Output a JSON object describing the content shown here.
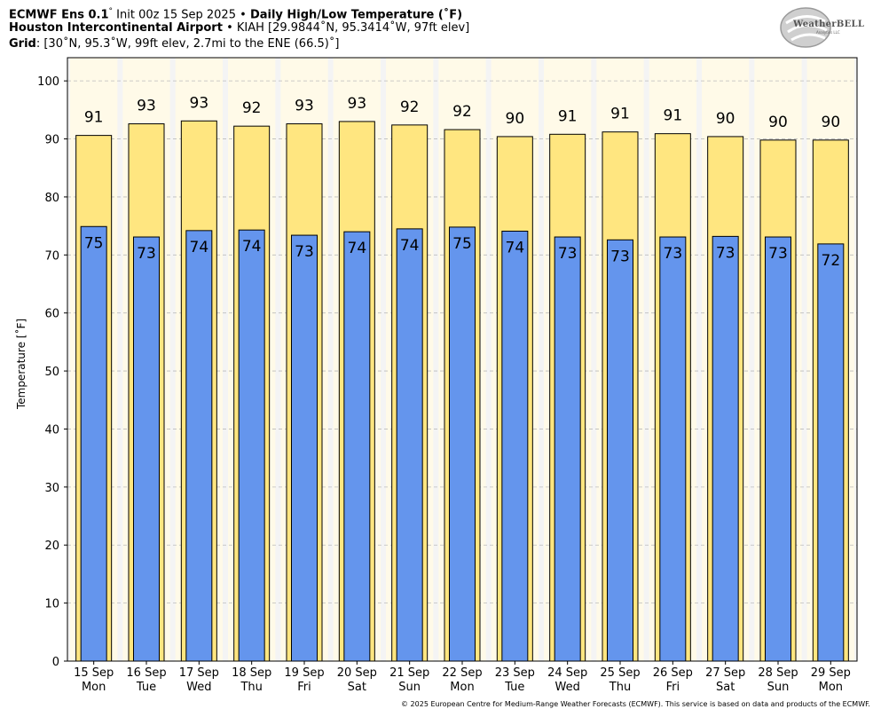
{
  "header": {
    "model": "ECMWF Ens 0.1",
    "model_sup": "°",
    "init": "Init 00z 15 Sep 2025",
    "sep": "•",
    "product": "Daily High/Low Temperature (˚F)",
    "station_name": "Houston Intercontinental Airport",
    "station_info": "KIAH [29.9844˚N, 95.3414˚W, 97ft elev]",
    "grid_label": "Grid",
    "grid_info": ": [30˚N, 95.3˚W, 99ft elev, 2.7mi to the ENE (66.5)˚]"
  },
  "logo": {
    "text": "WeatherBELL",
    "sub": "Analytics LLC"
  },
  "footer": "© 2025 European Centre for Medium-Range Weather Forecasts (ECMWF). This service is based on data and products of the ECMWF.",
  "colors": {
    "high": "#FFE680",
    "low": "#6495ED",
    "plot_bg": "#F4F4F4",
    "day_band": "#FFFAE8",
    "grid": "#BBBBBB"
  },
  "chart_data": {
    "type": "bar",
    "ylabel": "Temperature [˚F]",
    "ylim": [
      0,
      104
    ],
    "yticks": [
      0,
      10,
      20,
      30,
      40,
      50,
      60,
      70,
      80,
      90,
      100
    ],
    "grid": true,
    "categories": [
      "15 Sep",
      "16 Sep",
      "17 Sep",
      "18 Sep",
      "19 Sep",
      "20 Sep",
      "21 Sep",
      "22 Sep",
      "23 Sep",
      "24 Sep",
      "25 Sep",
      "26 Sep",
      "27 Sep",
      "28 Sep",
      "29 Sep"
    ],
    "weekdays": [
      "Mon",
      "Tue",
      "Wed",
      "Thu",
      "Fri",
      "Sat",
      "Sun",
      "Mon",
      "Tue",
      "Wed",
      "Thu",
      "Fri",
      "Sat",
      "Sun",
      "Mon"
    ],
    "series": [
      {
        "name": "High",
        "values": [
          90.6,
          92.6,
          93.1,
          92.2,
          92.6,
          93.0,
          92.4,
          91.6,
          90.4,
          90.8,
          91.2,
          90.9,
          90.4,
          89.8,
          89.8
        ],
        "labels": [
          "91",
          "93",
          "93",
          "92",
          "93",
          "93",
          "92",
          "92",
          "90",
          "91",
          "91",
          "91",
          "90",
          "90",
          "90"
        ]
      },
      {
        "name": "Low",
        "values": [
          74.9,
          73.1,
          74.2,
          74.3,
          73.4,
          74.0,
          74.5,
          74.8,
          74.1,
          73.1,
          72.6,
          73.1,
          73.2,
          73.1,
          71.9
        ],
        "labels": [
          "75",
          "73",
          "74",
          "74",
          "73",
          "74",
          "74",
          "75",
          "74",
          "73",
          "73",
          "73",
          "73",
          "73",
          "72"
        ]
      }
    ]
  }
}
